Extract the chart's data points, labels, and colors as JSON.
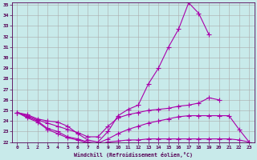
{
  "xlabel": "Windchill (Refroidissement éolien,°C)",
  "background_color": "#c8eaea",
  "line_color": "#aa00aa",
  "grid_color": "#aaaaaa",
  "ylim": [
    22,
    35
  ],
  "xlim": [
    0,
    23
  ],
  "lines": [
    {
      "x": [
        0,
        1,
        2,
        3,
        4,
        5,
        6,
        7,
        8,
        9,
        10,
        11,
        12,
        13,
        14,
        15,
        16,
        17,
        18,
        19
      ],
      "y": [
        24.8,
        24.6,
        24.2,
        24.0,
        23.9,
        23.5,
        22.8,
        22.2,
        22.0,
        23.0,
        24.5,
        25.1,
        25.5,
        27.5,
        29.0,
        31.0,
        32.7,
        35.2,
        34.2,
        32.2
      ]
    },
    {
      "x": [
        0,
        1,
        2,
        3,
        4,
        5,
        6,
        7,
        8,
        9,
        10,
        11,
        12,
        13,
        14,
        15,
        16,
        17,
        18,
        19,
        20
      ],
      "y": [
        24.8,
        24.5,
        24.1,
        23.8,
        23.5,
        23.2,
        22.9,
        22.5,
        22.5,
        23.5,
        24.3,
        24.6,
        24.8,
        25.0,
        25.1,
        25.2,
        25.4,
        25.5,
        25.7,
        26.2,
        26.0
      ]
    },
    {
      "x": [
        0,
        1,
        2,
        3,
        4,
        5,
        6,
        7,
        8,
        9,
        10,
        11,
        12,
        13,
        14,
        15,
        16,
        17,
        18,
        19,
        20,
        21,
        22,
        23
      ],
      "y": [
        24.8,
        24.4,
        24.0,
        23.3,
        23.0,
        22.5,
        22.3,
        22.0,
        21.9,
        22.3,
        22.8,
        23.2,
        23.5,
        23.8,
        24.0,
        24.2,
        24.4,
        24.5,
        24.5,
        24.5,
        24.5,
        24.5,
        23.2,
        22.0
      ]
    },
    {
      "x": [
        0,
        1,
        2,
        3,
        4,
        5,
        6,
        7,
        8,
        9,
        10,
        11,
        12,
        13,
        14,
        15,
        16,
        17,
        18,
        19,
        20,
        21,
        22,
        23
      ],
      "y": [
        24.8,
        24.3,
        23.9,
        23.2,
        22.8,
        22.4,
        22.2,
        21.9,
        21.8,
        22.0,
        22.1,
        22.2,
        22.2,
        22.3,
        22.3,
        22.3,
        22.3,
        22.3,
        22.3,
        22.3,
        22.3,
        22.3,
        22.2,
        22.0
      ]
    }
  ]
}
